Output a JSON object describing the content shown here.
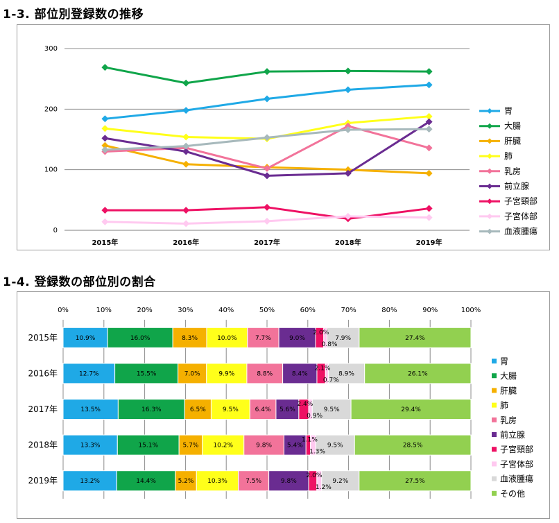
{
  "sections": [
    {
      "title": "1-3. 部位別登録数の推移"
    },
    {
      "title": "1-4. 登録数の部位別の割合"
    }
  ],
  "chart_data": [
    {
      "type": "line",
      "x": [
        "2015年",
        "2016年",
        "2017年",
        "2018年",
        "2019年"
      ],
      "ylim": [
        0,
        300
      ],
      "yticks": [
        "0",
        "100",
        "200",
        "300"
      ],
      "legend": "right",
      "series": [
        {
          "name": "胃",
          "color": "#1fa9e6",
          "values": [
            184,
            198,
            217,
            232,
            240
          ]
        },
        {
          "name": "大腸",
          "color": "#10a54a",
          "values": [
            269,
            243,
            262,
            263,
            262
          ]
        },
        {
          "name": "肝臓",
          "color": "#f5b000",
          "values": [
            140,
            109,
            104,
            100,
            94
          ]
        },
        {
          "name": "肺",
          "color": "#ffff1a",
          "values": [
            168,
            154,
            151,
            177,
            188
          ]
        },
        {
          "name": "乳房",
          "color": "#f2739a",
          "values": [
            130,
            136,
            102,
            172,
            136
          ]
        },
        {
          "name": "前立腺",
          "color": "#6a2c91",
          "values": [
            152,
            130,
            90,
            94,
            179
          ]
        },
        {
          "name": "子宮頸部",
          "color": "#ee1164",
          "values": [
            33,
            33,
            38,
            19,
            36
          ]
        },
        {
          "name": "子宮体部",
          "color": "#ffc9f0",
          "values": [
            14,
            11,
            15,
            23,
            21
          ]
        },
        {
          "name": "血液腫瘍",
          "color": "#a7b9bc",
          "values": [
            133,
            139,
            153,
            166,
            167
          ]
        }
      ]
    },
    {
      "type": "bar",
      "orientation": "horizontal-stacked-100",
      "xticks": [
        "0%",
        "10%",
        "20%",
        "30%",
        "40%",
        "50%",
        "60%",
        "70%",
        "80%",
        "90%",
        "100%"
      ],
      "categories": [
        "2015年",
        "2016年",
        "2017年",
        "2018年",
        "2019年"
      ],
      "legend": "right",
      "series": [
        {
          "name": "胃",
          "color": "#1fa9e6",
          "values": [
            10.9,
            12.7,
            13.5,
            13.3,
            13.2
          ],
          "labels": [
            "10.9%",
            "12.7%",
            "13.5%",
            "13.3%",
            "13.2%"
          ]
        },
        {
          "name": "大腸",
          "color": "#10a54a",
          "values": [
            16.0,
            15.5,
            16.3,
            15.1,
            14.4
          ],
          "labels": [
            "16.0%",
            "15.5%",
            "16.3%",
            "15.1%",
            "14.4%"
          ]
        },
        {
          "name": "肝臓",
          "color": "#f5b000",
          "values": [
            8.3,
            7.0,
            6.5,
            5.7,
            5.2
          ],
          "labels": [
            "8.3%",
            "7.0%",
            "6.5%",
            "5.7%",
            "5.2%"
          ]
        },
        {
          "name": "肺",
          "color": "#ffff1a",
          "values": [
            10.0,
            9.9,
            9.5,
            10.2,
            10.3
          ],
          "labels": [
            "10.0%",
            "9.9%",
            "9.5%",
            "10.2%",
            "10.3%"
          ]
        },
        {
          "name": "乳房",
          "color": "#f2739a",
          "values": [
            7.7,
            8.8,
            6.4,
            9.8,
            7.5
          ],
          "labels": [
            "7.7%",
            "8.8%",
            "6.4%",
            "9.8%",
            "7.5%"
          ]
        },
        {
          "name": "前立腺",
          "color": "#6a2c91",
          "values": [
            9.0,
            8.4,
            5.6,
            5.4,
            9.8
          ],
          "labels": [
            "9.0%",
            "8.4%",
            "5.6%",
            "5.4%",
            "9.8%"
          ]
        },
        {
          "name": "子宮頸部",
          "color": "#ee1164",
          "values": [
            2.0,
            2.1,
            2.4,
            1.1,
            2.0
          ],
          "labels": [
            "2.0%",
            "2.1%",
            "2.4%",
            "1.1%",
            "2.0%"
          ]
        },
        {
          "name": "子宮体部",
          "color": "#ffc9f0",
          "values": [
            0.8,
            0.7,
            0.9,
            1.3,
            1.2
          ],
          "labels": [
            "0.8%",
            "0.7%",
            "0.9%",
            "1.3%",
            "1.2%"
          ]
        },
        {
          "name": "血液腫瘍",
          "color": "#d9d9d9",
          "values": [
            7.9,
            8.9,
            9.5,
            9.5,
            9.2
          ],
          "labels": [
            "7.9%",
            "8.9%",
            "9.5%",
            "9.5%",
            "9.2%"
          ]
        },
        {
          "name": "その他",
          "color": "#92d050",
          "values": [
            27.4,
            26.1,
            29.4,
            28.5,
            27.5
          ],
          "labels": [
            "27.4%",
            "26.1%",
            "29.4%",
            "28.5%",
            "27.5%"
          ]
        }
      ]
    }
  ]
}
